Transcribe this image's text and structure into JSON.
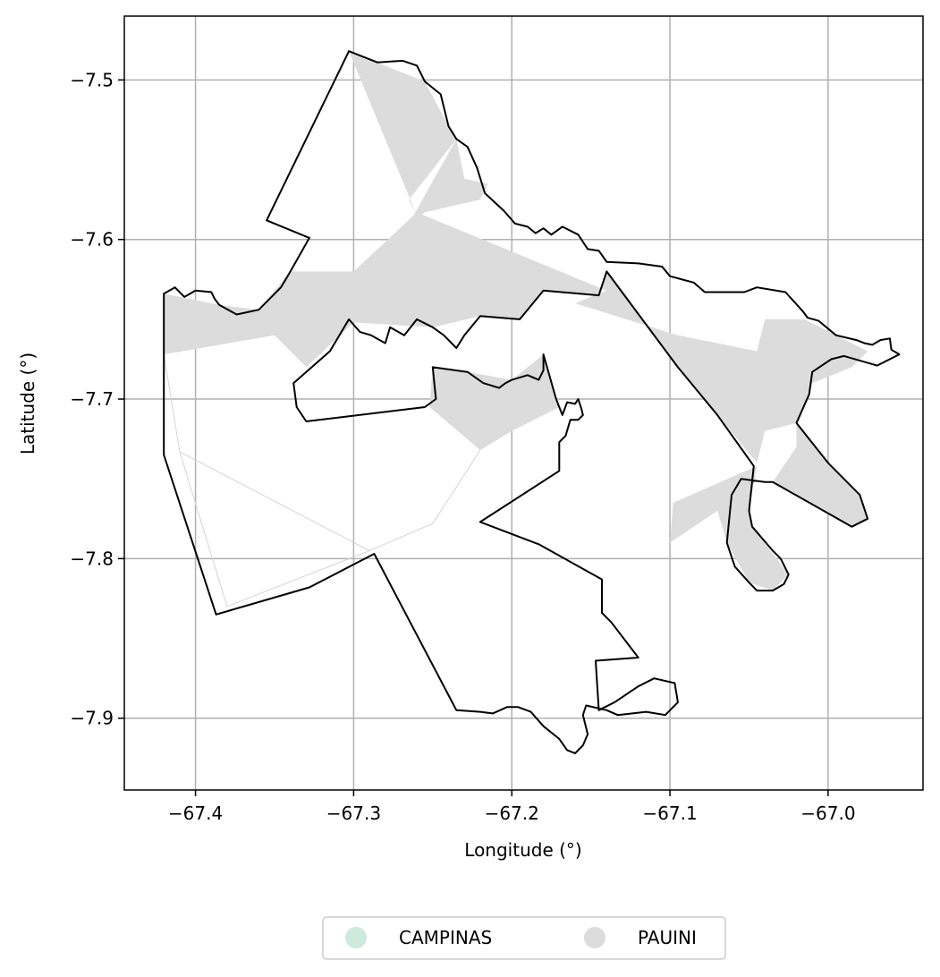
{
  "chart_data": {
    "type": "map",
    "xlabel": "Longitude (°)",
    "ylabel": "Latitude (°)",
    "xlim": [
      -67.445,
      -66.94
    ],
    "ylim": [
      -7.945,
      -7.46
    ],
    "x_ticks": [
      {
        "value": -67.4,
        "label": "−67.4"
      },
      {
        "value": -67.3,
        "label": "−67.3"
      },
      {
        "value": -67.2,
        "label": "−67.2"
      },
      {
        "value": -67.1,
        "label": "−67.1"
      },
      {
        "value": -67.0,
        "label": "−67.0"
      }
    ],
    "y_ticks": [
      {
        "value": -7.5,
        "label": "−7.5"
      },
      {
        "value": -7.6,
        "label": "−7.6"
      },
      {
        "value": -7.7,
        "label": "−7.7"
      },
      {
        "value": -7.8,
        "label": "−7.8"
      },
      {
        "value": -7.9,
        "label": "−7.9"
      }
    ],
    "grid": true,
    "legend": {
      "placement": "bottom-center",
      "entries": [
        {
          "label": "CAMPINAS",
          "color": "#cdeadb"
        },
        {
          "label": "PAUINI",
          "color": "#dcdcdc"
        }
      ]
    },
    "boundary_color": "#000000",
    "fill_color": "#dcdcdc",
    "boundary": [
      [
        -67.303,
        -7.482
      ],
      [
        -67.285,
        -7.489
      ],
      [
        -67.269,
        -7.488
      ],
      [
        -67.26,
        -7.491
      ],
      [
        -67.255,
        -7.501
      ],
      [
        -67.245,
        -7.509
      ],
      [
        -67.24,
        -7.529
      ],
      [
        -67.235,
        -7.537
      ],
      [
        -67.228,
        -7.542
      ],
      [
        -67.222,
        -7.555
      ],
      [
        -67.217,
        -7.571
      ],
      [
        -67.205,
        -7.582
      ],
      [
        -67.198,
        -7.59
      ],
      [
        -67.19,
        -7.592
      ],
      [
        -67.185,
        -7.596
      ],
      [
        -67.18,
        -7.593
      ],
      [
        -67.175,
        -7.597
      ],
      [
        -67.168,
        -7.592
      ],
      [
        -67.158,
        -7.597
      ],
      [
        -67.152,
        -7.606
      ],
      [
        -67.145,
        -7.607
      ],
      [
        -67.14,
        -7.614
      ],
      [
        -67.12,
        -7.615
      ],
      [
        -67.105,
        -7.617
      ],
      [
        -67.1,
        -7.623
      ],
      [
        -67.085,
        -7.627
      ],
      [
        -67.078,
        -7.633
      ],
      [
        -67.065,
        -7.633
      ],
      [
        -67.053,
        -7.633
      ],
      [
        -67.045,
        -7.63
      ],
      [
        -67.027,
        -7.633
      ],
      [
        -67.016,
        -7.645
      ],
      [
        -67.013,
        -7.649
      ],
      [
        -67.006,
        -7.651
      ],
      [
        -66.995,
        -7.66
      ],
      [
        -66.982,
        -7.663
      ],
      [
        -66.977,
        -7.665
      ],
      [
        -66.972,
        -7.666
      ],
      [
        -66.967,
        -7.663
      ],
      [
        -66.961,
        -7.662
      ],
      [
        -66.96,
        -7.669
      ],
      [
        -66.955,
        -7.672
      ],
      [
        -66.969,
        -7.679
      ],
      [
        -66.99,
        -7.673
      ],
      [
        -66.998,
        -7.675
      ],
      [
        -67.01,
        -7.683
      ],
      [
        -67.012,
        -7.697
      ],
      [
        -67.02,
        -7.715
      ],
      [
        -67.0,
        -7.74
      ],
      [
        -66.98,
        -7.76
      ],
      [
        -66.975,
        -7.775
      ],
      [
        -66.985,
        -7.78
      ],
      [
        -67.035,
        -7.752
      ],
      [
        -67.04,
        -7.752
      ],
      [
        -67.055,
        -7.75
      ],
      [
        -67.061,
        -7.76
      ],
      [
        -67.064,
        -7.79
      ],
      [
        -67.059,
        -7.805
      ],
      [
        -67.05,
        -7.815
      ],
      [
        -67.045,
        -7.82
      ],
      [
        -67.035,
        -7.82
      ],
      [
        -67.028,
        -7.816
      ],
      [
        -67.025,
        -7.81
      ],
      [
        -67.03,
        -7.8
      ],
      [
        -67.035,
        -7.795
      ],
      [
        -67.048,
        -7.78
      ],
      [
        -67.05,
        -7.77
      ],
      [
        -67.047,
        -7.742
      ],
      [
        -67.07,
        -7.71
      ],
      [
        -67.095,
        -7.68
      ],
      [
        -67.14,
        -7.62
      ],
      [
        -67.145,
        -7.635
      ],
      [
        -67.18,
        -7.632
      ],
      [
        -67.195,
        -7.65
      ],
      [
        -67.22,
        -7.648
      ],
      [
        -67.23,
        -7.66
      ],
      [
        -67.235,
        -7.668
      ],
      [
        -67.243,
        -7.66
      ],
      [
        -67.25,
        -7.655
      ],
      [
        -67.26,
        -7.65
      ],
      [
        -67.268,
        -7.66
      ],
      [
        -67.277,
        -7.655
      ],
      [
        -67.28,
        -7.665
      ],
      [
        -67.289,
        -7.66
      ],
      [
        -67.296,
        -7.658
      ],
      [
        -67.303,
        -7.65
      ],
      [
        -67.315,
        -7.67
      ],
      [
        -67.338,
        -7.69
      ],
      [
        -67.336,
        -7.705
      ],
      [
        -67.33,
        -7.714
      ],
      [
        -67.255,
        -7.705
      ],
      [
        -67.248,
        -7.7
      ],
      [
        -67.25,
        -7.68
      ],
      [
        -67.228,
        -7.683
      ],
      [
        -67.218,
        -7.69
      ],
      [
        -67.208,
        -7.693
      ],
      [
        -67.204,
        -7.69
      ],
      [
        -67.2,
        -7.688
      ],
      [
        -67.19,
        -7.685
      ],
      [
        -67.183,
        -7.688
      ],
      [
        -67.18,
        -7.682
      ],
      [
        -67.18,
        -7.672
      ],
      [
        -67.172,
        -7.7
      ],
      [
        -67.17,
        -7.705
      ],
      [
        -67.168,
        -7.71
      ],
      [
        -67.165,
        -7.702
      ],
      [
        -67.16,
        -7.703
      ],
      [
        -67.158,
        -7.7
      ],
      [
        -67.156,
        -7.706
      ],
      [
        -67.155,
        -7.71
      ],
      [
        -67.158,
        -7.713
      ],
      [
        -67.163,
        -7.713
      ],
      [
        -67.166,
        -7.723
      ],
      [
        -67.17,
        -7.727
      ],
      [
        -67.17,
        -7.745
      ],
      [
        -67.22,
        -7.777
      ],
      [
        -67.183,
        -7.791
      ],
      [
        -67.143,
        -7.813
      ],
      [
        -67.143,
        -7.834
      ],
      [
        -67.137,
        -7.84
      ],
      [
        -67.12,
        -7.862
      ],
      [
        -67.147,
        -7.864
      ],
      [
        -67.145,
        -7.895
      ],
      [
        -67.135,
        -7.89
      ],
      [
        -67.12,
        -7.88
      ],
      [
        -67.11,
        -7.875
      ],
      [
        -67.097,
        -7.878
      ],
      [
        -67.095,
        -7.89
      ],
      [
        -67.103,
        -7.898
      ],
      [
        -67.115,
        -7.896
      ],
      [
        -67.133,
        -7.898
      ],
      [
        -67.14,
        -7.895
      ],
      [
        -67.153,
        -7.892
      ],
      [
        -67.155,
        -7.898
      ],
      [
        -67.152,
        -7.91
      ],
      [
        -67.155,
        -7.917
      ],
      [
        -67.16,
        -7.922
      ],
      [
        -67.165,
        -7.92
      ],
      [
        -67.17,
        -7.913
      ],
      [
        -67.18,
        -7.905
      ],
      [
        -67.188,
        -7.896
      ],
      [
        -67.196,
        -7.893
      ],
      [
        -67.203,
        -7.893
      ],
      [
        -67.212,
        -7.897
      ],
      [
        -67.22,
        -7.896
      ],
      [
        -67.235,
        -7.895
      ],
      [
        -67.287,
        -7.797
      ],
      [
        -67.328,
        -7.818
      ],
      [
        -67.387,
        -7.835
      ],
      [
        -67.42,
        -7.735
      ],
      [
        -67.42,
        -7.634
      ],
      [
        -67.413,
        -7.63
      ],
      [
        -67.407,
        -7.636
      ],
      [
        -67.4,
        -7.632
      ],
      [
        -67.39,
        -7.633
      ],
      [
        -67.388,
        -7.637
      ],
      [
        -67.385,
        -7.641
      ],
      [
        -67.374,
        -7.647
      ],
      [
        -67.36,
        -7.644
      ],
      [
        -67.352,
        -7.636
      ],
      [
        -67.346,
        -7.63
      ],
      [
        -67.34,
        -7.62
      ],
      [
        -67.328,
        -7.599
      ],
      [
        -67.355,
        -7.588
      ],
      [
        -67.303,
        -7.482
      ]
    ],
    "shaded_regions": [
      [
        [
          -67.303,
          -7.482
        ],
        [
          -67.255,
          -7.501
        ],
        [
          -67.24,
          -7.529
        ],
        [
          -67.235,
          -7.537
        ],
        [
          -67.265,
          -7.575
        ],
        [
          -67.26,
          -7.585
        ]
      ],
      [
        [
          -67.235,
          -7.537
        ],
        [
          -67.23,
          -7.562
        ],
        [
          -67.215,
          -7.565
        ],
        [
          -67.22,
          -7.575
        ],
        [
          -67.255,
          -7.583
        ],
        [
          -67.265,
          -7.59
        ]
      ],
      [
        [
          -67.26,
          -7.583
        ],
        [
          -67.14,
          -7.632
        ],
        [
          -67.16,
          -7.64
        ],
        [
          -67.095,
          -7.66
        ],
        [
          -67.045,
          -7.67
        ],
        [
          -67.04,
          -7.65
        ],
        [
          -67.015,
          -7.65
        ],
        [
          -66.995,
          -7.66
        ],
        [
          -66.975,
          -7.67
        ],
        [
          -66.985,
          -7.68
        ],
        [
          -67.01,
          -7.69
        ],
        [
          -67.02,
          -7.715
        ],
        [
          -67.04,
          -7.72
        ],
        [
          -67.045,
          -7.74
        ],
        [
          -67.07,
          -7.71
        ],
        [
          -67.095,
          -7.68
        ],
        [
          -67.14,
          -7.62
        ],
        [
          -67.145,
          -7.635
        ],
        [
          -67.18,
          -7.632
        ],
        [
          -67.195,
          -7.65
        ],
        [
          -67.22,
          -7.648
        ],
        [
          -67.25,
          -7.655
        ],
        [
          -67.3,
          -7.652
        ],
        [
          -67.33,
          -7.68
        ],
        [
          -67.35,
          -7.66
        ],
        [
          -67.42,
          -7.672
        ],
        [
          -67.42,
          -7.634
        ],
        [
          -67.385,
          -7.641
        ],
        [
          -67.36,
          -7.644
        ],
        [
          -67.34,
          -7.62
        ],
        [
          -67.3,
          -7.62
        ]
      ],
      [
        [
          -67.252,
          -7.705
        ],
        [
          -67.22,
          -7.732
        ],
        [
          -67.2,
          -7.72
        ],
        [
          -67.17,
          -7.705
        ],
        [
          -67.18,
          -7.672
        ],
        [
          -67.2,
          -7.688
        ],
        [
          -67.228,
          -7.683
        ],
        [
          -67.25,
          -7.68
        ]
      ],
      [
        [
          -67.035,
          -7.752
        ],
        [
          -67.02,
          -7.73
        ],
        [
          -67.02,
          -7.715
        ],
        [
          -67.0,
          -7.74
        ],
        [
          -66.98,
          -7.76
        ],
        [
          -66.975,
          -7.775
        ],
        [
          -66.985,
          -7.78
        ]
      ],
      [
        [
          -67.045,
          -7.742
        ],
        [
          -67.098,
          -7.765
        ],
        [
          -67.1,
          -7.79
        ],
        [
          -67.07,
          -7.77
        ],
        [
          -67.064,
          -7.79
        ],
        [
          -67.05,
          -7.815
        ],
        [
          -67.035,
          -7.82
        ],
        [
          -67.025,
          -7.81
        ],
        [
          -67.048,
          -7.78
        ],
        [
          -67.05,
          -7.77
        ]
      ]
    ],
    "faint_lines": [
      [
        [
          -67.42,
          -7.672
        ],
        [
          -67.41,
          -7.733
        ],
        [
          -67.29,
          -7.795
        ],
        [
          -67.25,
          -7.778
        ],
        [
          -67.22,
          -7.732
        ]
      ],
      [
        [
          -67.41,
          -7.733
        ],
        [
          -67.38,
          -7.83
        ],
        [
          -67.29,
          -7.795
        ]
      ]
    ]
  }
}
